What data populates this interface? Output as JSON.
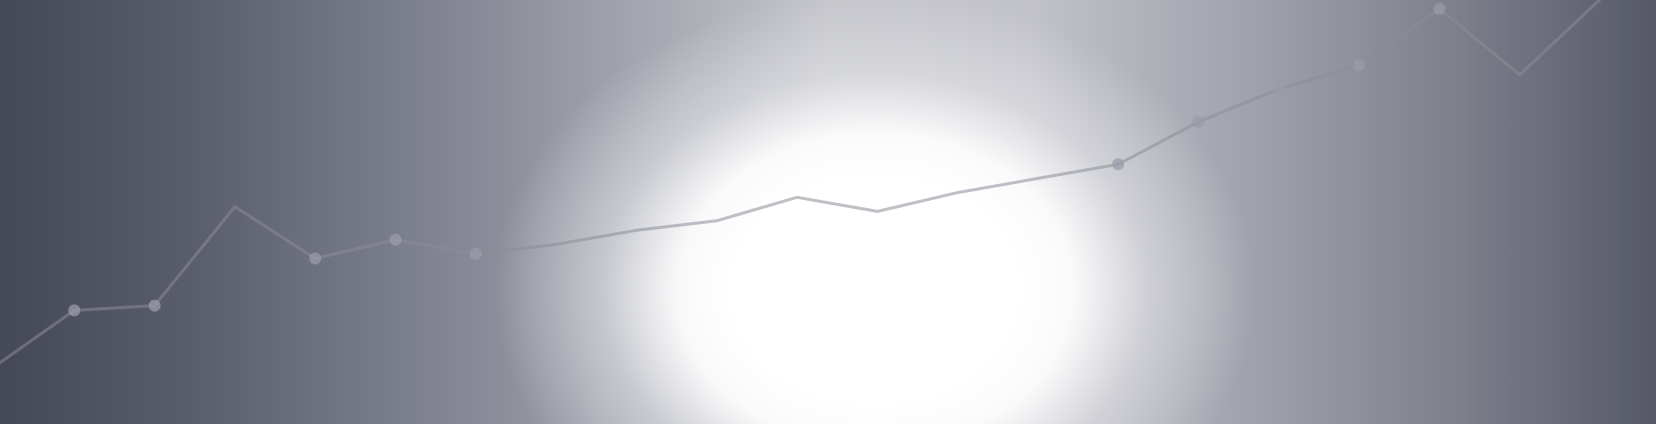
{
  "colors": {
    "background_dark": "#454856",
    "background_mid": "#a2a4ae",
    "glow": "#ffffff",
    "line": "#8a8c98",
    "marker": "#9a9ca8"
  },
  "chart_data": {
    "type": "line",
    "title": "",
    "xlabel": "",
    "ylabel": "",
    "grid": false,
    "legend": "none",
    "x": [
      0,
      1,
      2,
      3,
      4,
      5,
      6,
      7,
      8,
      9,
      10,
      11,
      12,
      13,
      14,
      15,
      16,
      17,
      18,
      19,
      20
    ],
    "series": [
      {
        "values": [
          1.0,
          2.2,
          2.3,
          4.4,
          3.3,
          3.7,
          3.4,
          3.6,
          3.9,
          4.1,
          4.6,
          4.3,
          4.7,
          5.0,
          5.3,
          6.2,
          6.9,
          7.4,
          8.6,
          7.2,
          8.8
        ],
        "markers": [
          1,
          2,
          4,
          5,
          6,
          14,
          15,
          16,
          17,
          18
        ]
      }
    ],
    "ylim": [
      0,
      9
    ]
  }
}
